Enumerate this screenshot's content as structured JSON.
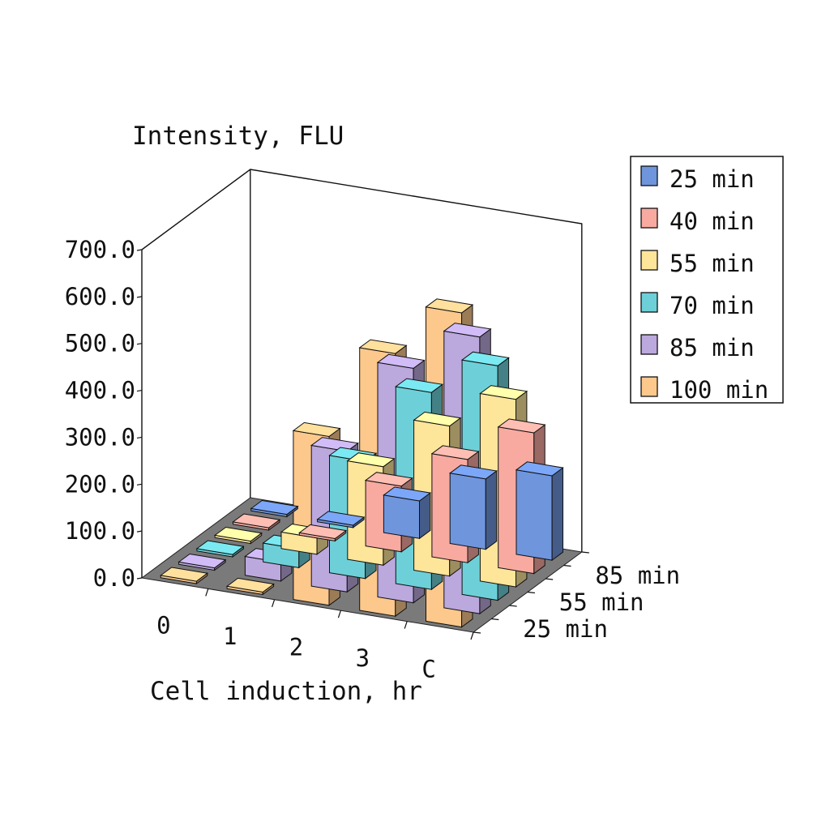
{
  "chart_data": {
    "type": "bar",
    "title": "Intensity, FLU",
    "xlabel": "Cell induction, hr",
    "ylabel": "",
    "categories": [
      "0",
      "1",
      "2",
      "3",
      "C"
    ],
    "depth_tick_labels": [
      "25 min",
      "55 min",
      "85 min"
    ],
    "yticks": [
      "0.0",
      "100.0",
      "200.0",
      "300.0",
      "400.0",
      "500.0",
      "600.0",
      "700.0"
    ],
    "ylim": [
      0,
      700
    ],
    "grid": false,
    "legend_position": "right",
    "series": [
      {
        "name": "25 min",
        "color": "#6f95dd",
        "values": [
          5,
          5,
          80,
          150,
          180
        ]
      },
      {
        "name": "40 min",
        "color": "#f8aaa0",
        "values": [
          5,
          5,
          140,
          220,
          300
        ]
      },
      {
        "name": "55 min",
        "color": "#fde59a",
        "values": [
          5,
          35,
          210,
          320,
          400
        ]
      },
      {
        "name": "70 min",
        "color": "#6dd0d8",
        "values": [
          5,
          40,
          250,
          420,
          500
        ]
      },
      {
        "name": "85 min",
        "color": "#bba8dd",
        "values": [
          5,
          40,
          300,
          500,
          590
        ]
      },
      {
        "name": "100 min",
        "color": "#fcc88c",
        "values": [
          5,
          5,
          360,
          560,
          670
        ]
      }
    ]
  }
}
